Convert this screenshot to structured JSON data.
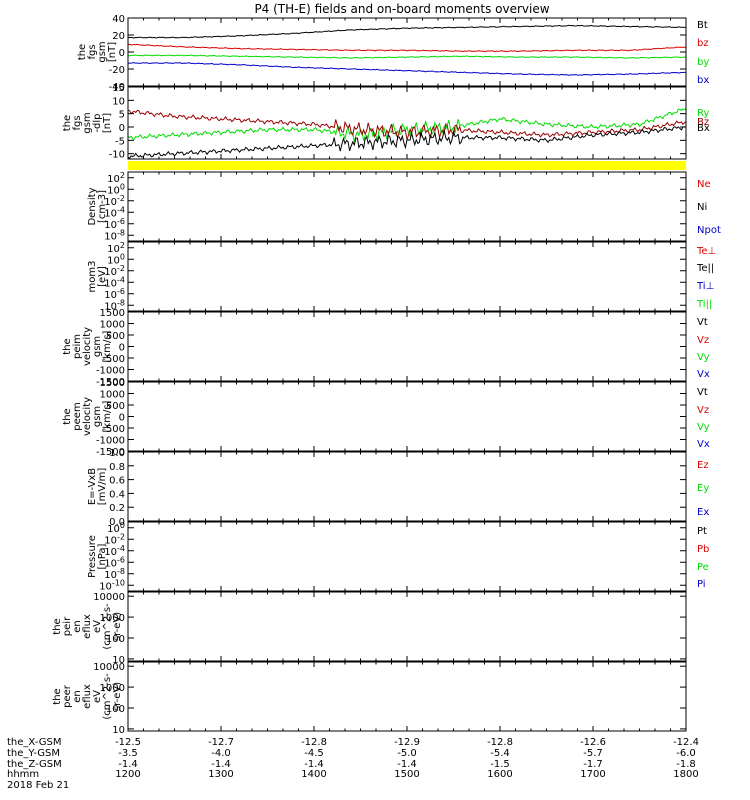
{
  "title": "P4 (TH-E) fields and on-board moments overview",
  "date_label": "2018 Feb 21",
  "colors": {
    "black": "#000000",
    "red": "#dd0000",
    "darkred": "#990000",
    "green": "#00dd00",
    "blue": "#0000cc",
    "yellow": "#ffff00"
  },
  "x_axis": {
    "unit_label": "hhmm",
    "ticks": [
      "1200",
      "1300",
      "1400",
      "1500",
      "1600",
      "1700",
      "1800"
    ],
    "xlim": [
      1200,
      1800
    ],
    "position_rows": [
      {
        "label": "the_X-GSM",
        "values": [
          "-12.5",
          "-12.7",
          "-12.8",
          "-12.9",
          "-12.8",
          "-12.6",
          "-12.4"
        ]
      },
      {
        "label": "the_Y-GSM",
        "values": [
          "-3.5",
          "-4.0",
          "-4.5",
          "-5.0",
          "-5.4",
          "-5.7",
          "-6.0"
        ]
      },
      {
        "label": "the_Z-GSM",
        "values": [
          "-1.4",
          "-1.4",
          "-1.4",
          "-1.4",
          "-1.5",
          "-1.7",
          "-1.8"
        ]
      }
    ]
  },
  "chart_data": [
    {
      "type": "line",
      "ylabel": [
        "the",
        "fgs",
        "gsm",
        "[nT]"
      ],
      "scale": "linear",
      "ylim": [
        -40,
        40
      ],
      "ticks": [
        "40",
        "20",
        "0",
        "-20",
        "-40"
      ],
      "series": [
        {
          "name": "Bt",
          "color": "#000000",
          "x": [
            1200,
            1260,
            1320,
            1380,
            1440,
            1500,
            1560,
            1620,
            1680,
            1740,
            1800
          ],
          "values": [
            17,
            17,
            19,
            22,
            26,
            28,
            29,
            30,
            31,
            30,
            29
          ]
        },
        {
          "name": "bz",
          "color": "#dd0000",
          "x": [
            1200,
            1260,
            1320,
            1380,
            1440,
            1500,
            1560,
            1620,
            1680,
            1740,
            1800
          ],
          "values": [
            9,
            6,
            4,
            3,
            2,
            2,
            1,
            1,
            2,
            2,
            6
          ]
        },
        {
          "name": "by",
          "color": "#00dd00",
          "x": [
            1200,
            1260,
            1320,
            1380,
            1440,
            1500,
            1560,
            1620,
            1680,
            1740,
            1800
          ],
          "values": [
            -4,
            -4,
            -5,
            -6,
            -7,
            -6,
            -5,
            -6,
            -6,
            -7,
            -6
          ]
        },
        {
          "name": "bx",
          "color": "#0000cc",
          "x": [
            1200,
            1260,
            1320,
            1380,
            1440,
            1500,
            1560,
            1620,
            1680,
            1740,
            1800
          ],
          "values": [
            -13,
            -13,
            -15,
            -18,
            -20,
            -22,
            -24,
            -26,
            -27,
            -26,
            -24
          ]
        }
      ]
    },
    {
      "type": "line",
      "ylabel": [
        "the",
        "fgs",
        "gsm",
        "-dlp",
        "[nT]"
      ],
      "scale": "linear",
      "ylim": [
        -12,
        15
      ],
      "ticks": [
        "15",
        "10",
        "5",
        "0",
        "-5",
        "-10"
      ],
      "series": [
        {
          "name": "Ry",
          "color": "#00dd00",
          "x": [
            1200,
            1250,
            1300,
            1350,
            1400,
            1450,
            1500,
            1550,
            1600,
            1650,
            1700,
            1750,
            1800
          ],
          "values": [
            -4,
            -3,
            -2,
            -1,
            -1,
            -3,
            -1,
            0,
            3,
            1,
            0,
            1,
            7
          ]
        },
        {
          "name": "Bz",
          "color": "#990000",
          "x": [
            1200,
            1250,
            1300,
            1350,
            1400,
            1450,
            1500,
            1550,
            1600,
            1650,
            1700,
            1750,
            1800
          ],
          "values": [
            6,
            4,
            3,
            2,
            1,
            -1,
            -2,
            -1,
            -2,
            -3,
            -2,
            -1,
            2
          ]
        },
        {
          "name": "Bx",
          "color": "#000000",
          "x": [
            1200,
            1250,
            1300,
            1350,
            1400,
            1450,
            1500,
            1550,
            1600,
            1650,
            1700,
            1750,
            1800
          ],
          "values": [
            -11,
            -10,
            -9,
            -8,
            -7,
            -6,
            -5,
            -4,
            -4,
            -5,
            -3,
            -2,
            0
          ]
        }
      ]
    },
    {
      "type": "line",
      "ylabel": [
        "Density",
        "[cm-3]"
      ],
      "scale": "log",
      "ylim": [
        -9,
        3
      ],
      "ticks": [
        "10^2",
        "10^0",
        "10^-2",
        "10^-4",
        "10^-6",
        "10^-8"
      ],
      "legend": [
        {
          "name": "Ne",
          "color": "#dd0000"
        },
        {
          "name": "Ni",
          "color": "#000000"
        },
        {
          "name": "Npot",
          "color": "#0000cc"
        }
      ],
      "series": []
    },
    {
      "type": "line",
      "ylabel": [
        "mom3",
        "[eV]"
      ],
      "scale": "log",
      "ylim": [
        -9,
        3
      ],
      "ticks": [
        "10^2",
        "10^0",
        "10^-2",
        "10^-4",
        "10^-6",
        "10^-8"
      ],
      "legend": [
        {
          "name": "Te⊥",
          "color": "#dd0000"
        },
        {
          "name": "Te||",
          "color": "#000000"
        },
        {
          "name": "Ti⊥",
          "color": "#0000cc"
        },
        {
          "name": "Ti||",
          "color": "#00dd00"
        }
      ],
      "series": []
    },
    {
      "type": "line",
      "ylabel": [
        "the",
        "peim",
        "velocity",
        "gsm",
        "[km/s]"
      ],
      "scale": "linear",
      "ylim": [
        -1500,
        1500
      ],
      "ticks": [
        "1500",
        "1000",
        "500",
        "0",
        "-500",
        "-1000",
        "-1500"
      ],
      "legend": [
        {
          "name": "Vt",
          "color": "#000000"
        },
        {
          "name": "Vz",
          "color": "#dd0000"
        },
        {
          "name": "Vy",
          "color": "#00dd00"
        },
        {
          "name": "Vx",
          "color": "#0000cc"
        }
      ],
      "series": []
    },
    {
      "type": "line",
      "ylabel": [
        "the",
        "peem",
        "velocity",
        "gsm",
        "[km/s]"
      ],
      "scale": "linear",
      "ylim": [
        -1500,
        1500
      ],
      "ticks": [
        "1500",
        "1000",
        "500",
        "0",
        "-500",
        "-1000",
        "-1500"
      ],
      "legend": [
        {
          "name": "Vt",
          "color": "#000000"
        },
        {
          "name": "Vz",
          "color": "#dd0000"
        },
        {
          "name": "Vy",
          "color": "#00dd00"
        },
        {
          "name": "Vx",
          "color": "#0000cc"
        }
      ],
      "series": []
    },
    {
      "type": "line",
      "ylabel": [
        "E=-VxB",
        "[mV/m]"
      ],
      "scale": "linear",
      "ylim": [
        0,
        1
      ],
      "ticks": [
        "1.0",
        "0.8",
        "0.6",
        "0.4",
        "0.2",
        "0.0"
      ],
      "legend": [
        {
          "name": "Ez",
          "color": "#dd0000"
        },
        {
          "name": "Ey",
          "color": "#00dd00"
        },
        {
          "name": "Ex",
          "color": "#0000cc"
        }
      ],
      "series": []
    },
    {
      "type": "line",
      "ylabel": [
        "Pressure",
        "[nPa]"
      ],
      "scale": "log",
      "ylim": [
        -11,
        1
      ],
      "ticks": [
        "10^0",
        "10^-2",
        "10^-4",
        "10^-6",
        "10^-8",
        "10^-10"
      ],
      "legend": [
        {
          "name": "Pt",
          "color": "#000000"
        },
        {
          "name": "Pb",
          "color": "#dd0000"
        },
        {
          "name": "Pe",
          "color": "#00dd00"
        },
        {
          "name": "Pi",
          "color": "#0000cc"
        }
      ],
      "series": []
    },
    {
      "type": "heatmap",
      "ylabel": [
        "the",
        "peir",
        "en",
        "eflux",
        "eV",
        "(cm^2-s-",
        "sr-eV)"
      ],
      "scale": "log",
      "ylim": [
        0.9,
        4.2
      ],
      "ticks": [
        "10000",
        "1000",
        "100",
        "10"
      ],
      "series": []
    },
    {
      "type": "heatmap",
      "ylabel": [
        "the",
        "peer",
        "en",
        "eflux",
        "eV",
        "(cm^2-s-",
        "sr-eV)"
      ],
      "scale": "log",
      "ylim": [
        0.9,
        4.2
      ],
      "ticks": [
        "10000",
        "1000",
        "100",
        "10"
      ],
      "series": []
    }
  ]
}
